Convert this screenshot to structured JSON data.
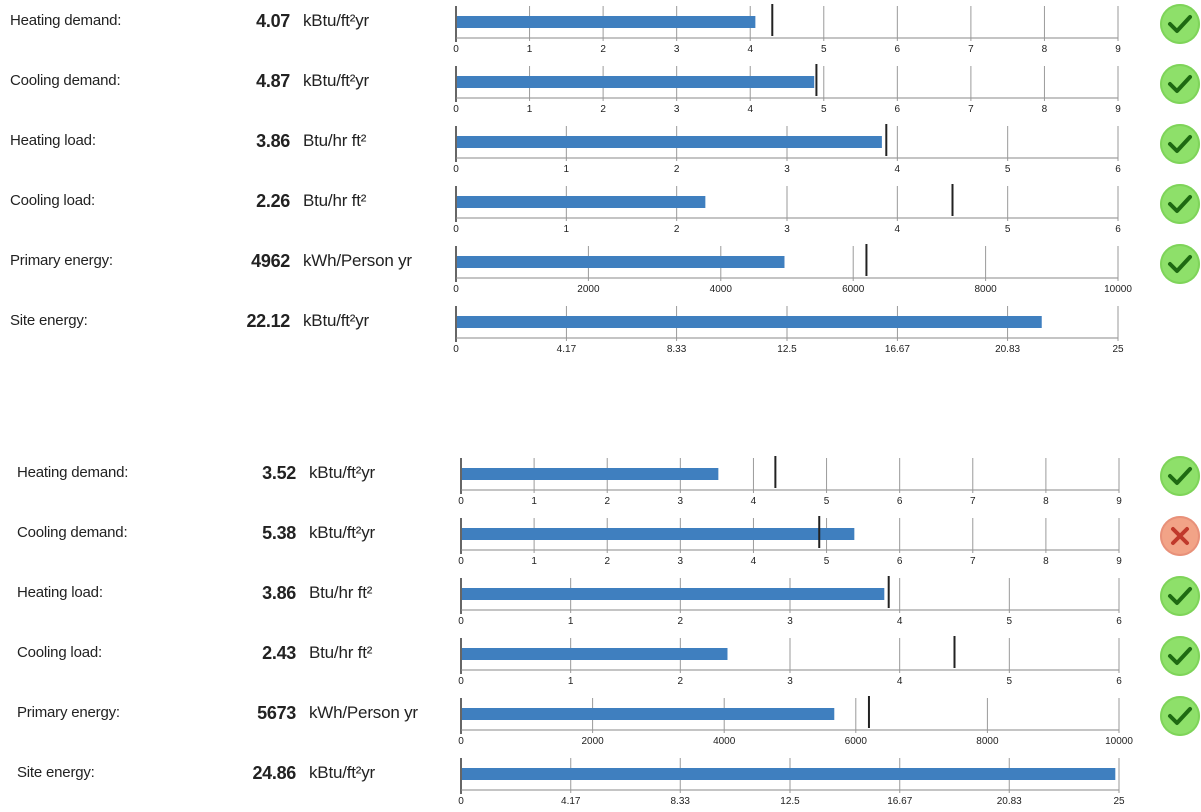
{
  "colors": {
    "bar": "#3f7fbf",
    "ok": "#8ee06a",
    "fail": "#f2a387",
    "check": "#1e6a12",
    "cross": "#c0392b"
  },
  "panels": [
    {
      "rows": [
        {
          "label": "Heating demand:",
          "value": "4.07",
          "unit": "kBtu/ft²yr",
          "status": "check-icon",
          "chart_data": {
            "type": "bar",
            "value": 4.07,
            "xlim": [
              0,
              9
            ],
            "ticks": [
              "0",
              "1",
              "2",
              "3",
              "4",
              "5",
              "6",
              "7",
              "8",
              "9"
            ],
            "markers": [
              4.3
            ]
          }
        },
        {
          "label": "Cooling demand:",
          "value": "4.87",
          "unit": "kBtu/ft²yr",
          "status": "check-icon",
          "chart_data": {
            "type": "bar",
            "value": 4.87,
            "xlim": [
              0,
              9
            ],
            "ticks": [
              "0",
              "1",
              "2",
              "3",
              "4",
              "5",
              "6",
              "7",
              "8",
              "9"
            ],
            "markers": [
              4.9
            ]
          }
        },
        {
          "label": "Heating load:",
          "value": "3.86",
          "unit": "Btu/hr ft²",
          "status": "check-icon",
          "chart_data": {
            "type": "bar",
            "value": 3.86,
            "xlim": [
              0,
              6
            ],
            "ticks": [
              "0",
              "1",
              "2",
              "3",
              "4",
              "5",
              "6"
            ],
            "markers": [
              3.9
            ]
          }
        },
        {
          "label": "Cooling load:",
          "value": "2.26",
          "unit": "Btu/hr ft²",
          "status": "check-icon",
          "chart_data": {
            "type": "bar",
            "value": 2.26,
            "xlim": [
              0,
              6
            ],
            "ticks": [
              "0",
              "1",
              "2",
              "3",
              "4",
              "5",
              "6"
            ],
            "markers": [
              4.5
            ]
          }
        },
        {
          "label": "Primary energy:",
          "value": "4962",
          "unit": "kWh/Person yr",
          "status": "check-icon",
          "chart_data": {
            "type": "bar",
            "value": 4962,
            "xlim": [
              0,
              10000
            ],
            "ticks": [
              "0",
              "2000",
              "4000",
              "6000",
              "8000",
              "10000"
            ],
            "markers": [
              6200
            ]
          }
        },
        {
          "label": "Site energy:",
          "value": "22.12",
          "unit": "kBtu/ft²yr",
          "status": "",
          "chart_data": {
            "type": "bar",
            "value": 22.12,
            "xlim": [
              0,
              25
            ],
            "ticks": [
              "0",
              "4.17",
              "8.33",
              "12.5",
              "16.67",
              "20.83",
              "25"
            ],
            "markers": []
          }
        }
      ]
    },
    {
      "rows": [
        {
          "label": "Heating demand:",
          "value": "3.52",
          "unit": "kBtu/ft²yr",
          "status": "check-icon",
          "chart_data": {
            "type": "bar",
            "value": 3.52,
            "xlim": [
              0,
              9
            ],
            "ticks": [
              "0",
              "1",
              "2",
              "3",
              "4",
              "5",
              "6",
              "7",
              "8",
              "9"
            ],
            "markers": [
              4.3
            ]
          }
        },
        {
          "label": "Cooling demand:",
          "value": "5.38",
          "unit": "kBtu/ft²yr",
          "status": "cross-icon",
          "chart_data": {
            "type": "bar",
            "value": 5.38,
            "xlim": [
              0,
              9
            ],
            "ticks": [
              "0",
              "1",
              "2",
              "3",
              "4",
              "5",
              "6",
              "7",
              "8",
              "9"
            ],
            "markers": [
              4.9
            ]
          }
        },
        {
          "label": "Heating load:",
          "value": "3.86",
          "unit": "Btu/hr ft²",
          "status": "check-icon",
          "chart_data": {
            "type": "bar",
            "value": 3.86,
            "xlim": [
              0,
              6
            ],
            "ticks": [
              "0",
              "1",
              "2",
              "3",
              "4",
              "5",
              "6"
            ],
            "markers": [
              3.9
            ]
          }
        },
        {
          "label": "Cooling load:",
          "value": "2.43",
          "unit": "Btu/hr ft²",
          "status": "check-icon",
          "chart_data": {
            "type": "bar",
            "value": 2.43,
            "xlim": [
              0,
              6
            ],
            "ticks": [
              "0",
              "1",
              "2",
              "3",
              "4",
              "5",
              "6"
            ],
            "markers": [
              4.5
            ]
          }
        },
        {
          "label": "Primary energy:",
          "value": "5673",
          "unit": "kWh/Person yr",
          "status": "check-icon",
          "chart_data": {
            "type": "bar",
            "value": 5673,
            "xlim": [
              0,
              10000
            ],
            "ticks": [
              "0",
              "2000",
              "4000",
              "6000",
              "8000",
              "10000"
            ],
            "markers": [
              6200
            ]
          }
        },
        {
          "label": "Site energy:",
          "value": "24.86",
          "unit": "kBtu/ft²yr",
          "status": "",
          "chart_data": {
            "type": "bar",
            "value": 24.86,
            "xlim": [
              0,
              25
            ],
            "ticks": [
              "0",
              "4.17",
              "8.33",
              "12.5",
              "16.67",
              "20.83",
              "25"
            ],
            "markers": []
          }
        }
      ]
    }
  ]
}
